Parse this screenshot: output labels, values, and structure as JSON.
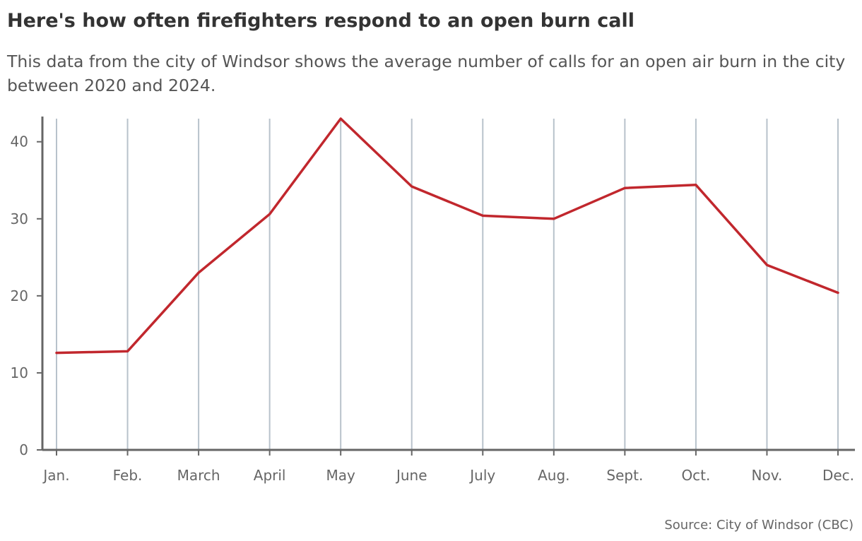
{
  "header": {
    "title": "Here's how often firefighters respond to an open burn call",
    "subtitle": "This data from the city of Windsor shows the average number of calls for an open air burn in the city between 2020 and 2024."
  },
  "footer": {
    "source": "Source: City of Windsor (CBC)"
  },
  "chart_data": {
    "type": "line",
    "title": "Here's how often firefighters respond to an open burn call",
    "subtitle": "This data from the city of Windsor shows the average number of calls for an open air burn in the city between 2020 and 2024.",
    "xlabel": "",
    "ylabel": "",
    "categories": [
      "Jan.",
      "Feb.",
      "March",
      "April",
      "May",
      "June",
      "July",
      "Aug.",
      "Sept.",
      "Oct.",
      "Nov.",
      "Dec."
    ],
    "series": [
      {
        "values": [
          12.6,
          12.8,
          23.0,
          30.6,
          43.0,
          34.2,
          30.4,
          30.0,
          34.0,
          34.4,
          24.0,
          20.4
        ],
        "color": "#c1272d"
      }
    ],
    "ylim": [
      0,
      43
    ],
    "yticks": [
      0,
      10,
      20,
      30,
      40
    ],
    "grid": "vertical",
    "legend": "none",
    "colors": {
      "line": "#c1272d",
      "grid": "#b8c2cb",
      "axis": "#666666"
    }
  }
}
